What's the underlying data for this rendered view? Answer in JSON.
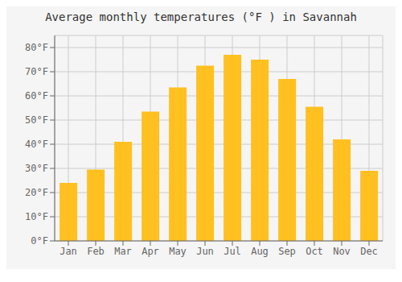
{
  "chart_data": {
    "type": "bar",
    "title": "Average monthly temperatures (°F ) in Savannah",
    "categories": [
      "Jan",
      "Feb",
      "Mar",
      "Apr",
      "May",
      "Jun",
      "Jul",
      "Aug",
      "Sep",
      "Oct",
      "Nov",
      "Dec"
    ],
    "values": [
      24,
      29.5,
      41,
      53.5,
      63.5,
      72.5,
      77,
      75,
      67,
      55.5,
      42,
      29
    ],
    "color": "#FFC020",
    "ylim": [
      0,
      85
    ],
    "yticks": [
      {
        "value": 0,
        "label": "0°F"
      },
      {
        "value": 10,
        "label": "10°F"
      },
      {
        "value": 20,
        "label": "20°F"
      },
      {
        "value": 30,
        "label": "30°F"
      },
      {
        "value": 40,
        "label": "40°F"
      },
      {
        "value": 50,
        "label": "50°F"
      },
      {
        "value": 60,
        "label": "60°F"
      },
      {
        "value": 70,
        "label": "70°F"
      },
      {
        "value": 80,
        "label": "80°F"
      }
    ],
    "grid": true
  }
}
